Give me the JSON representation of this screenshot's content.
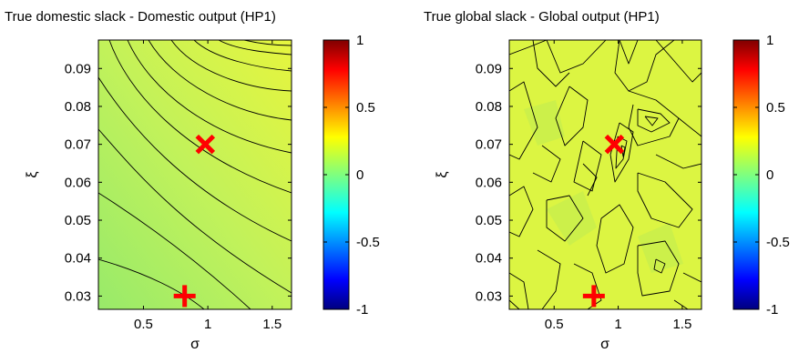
{
  "chart_data": [
    {
      "type": "heatmap",
      "title": "True domestic slack - Domestic output (HP1)",
      "xlabel": "σ",
      "ylabel": "ξ",
      "xlim": [
        0.15,
        1.65
      ],
      "ylim": [
        0.0265,
        0.0975
      ],
      "xticks": [
        "0.5",
        "1",
        "1.5"
      ],
      "xtick_values": [
        0.5,
        1.0,
        1.5
      ],
      "yticks": [
        "0.03",
        "0.04",
        "0.05",
        "0.06",
        "0.07",
        "0.08",
        "0.09"
      ],
      "ytick_values": [
        0.03,
        0.04,
        0.05,
        0.06,
        0.07,
        0.08,
        0.09
      ],
      "colorbar": {
        "range": [
          -1,
          1
        ],
        "ticks": [
          "1",
          "0.5",
          "0",
          "-0.5",
          "-1"
        ],
        "tick_values": [
          1,
          0.5,
          0,
          -0.5,
          -1
        ]
      },
      "markers": [
        {
          "symbol": "x",
          "x": 0.98,
          "y": 0.07,
          "color": "#ff0000"
        },
        {
          "symbol": "+",
          "x": 0.82,
          "y": 0.03,
          "color": "#ff0000"
        }
      ]
    },
    {
      "type": "heatmap",
      "title": "True global slack - Global output (HP1)",
      "xlabel": "σ",
      "ylabel": "ξ",
      "xlim": [
        0.15,
        1.65
      ],
      "ylim": [
        0.0265,
        0.0975
      ],
      "xticks": [
        "0.5",
        "1",
        "1.5"
      ],
      "xtick_values": [
        0.5,
        1.0,
        1.5
      ],
      "yticks": [
        "0.03",
        "0.04",
        "0.05",
        "0.06",
        "0.07",
        "0.08",
        "0.09"
      ],
      "ytick_values": [
        0.03,
        0.04,
        0.05,
        0.06,
        0.07,
        0.08,
        0.09
      ],
      "colorbar": {
        "range": [
          -1,
          1
        ],
        "ticks": [
          "1",
          "0.5",
          "0",
          "-0.5",
          "-1"
        ],
        "tick_values": [
          1,
          0.5,
          0,
          -0.5,
          -1
        ]
      },
      "markers": [
        {
          "symbol": "x",
          "x": 0.97,
          "y": 0.07,
          "color": "#ff0000"
        },
        {
          "symbol": "+",
          "x": 0.81,
          "y": 0.03,
          "color": "#ff0000"
        }
      ]
    }
  ]
}
